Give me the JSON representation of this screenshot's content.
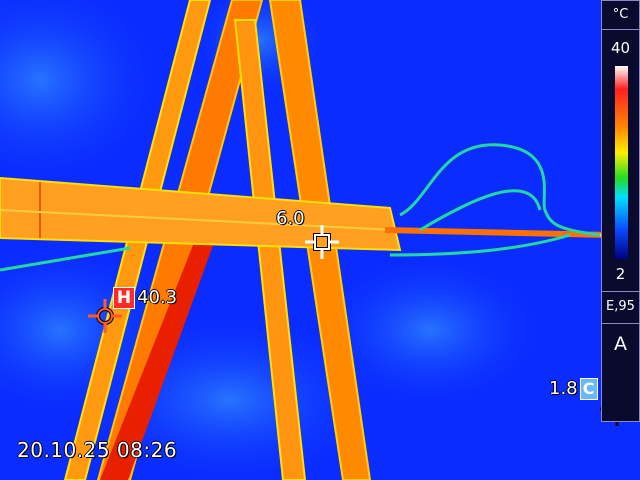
{
  "colors": {
    "sky": "#0a2cff",
    "hot": "#ff2a2a",
    "cold": "#6ab6ff",
    "panel": "#0a0a2e"
  },
  "measurements": {
    "center_spot": {
      "value": "6.0",
      "icon": "crosshair-icon"
    },
    "hot_spot": {
      "badge": "H",
      "value": "40.3",
      "icon": "crosshair-icon"
    },
    "cold_spot": {
      "badge": "C",
      "value": "1.8",
      "icon": "crosshair-icon"
    }
  },
  "timestamp": "20.10.25 08:26",
  "scale": {
    "unit": "°C",
    "max": "40",
    "min": "2",
    "emissivity": "E,95",
    "mode": "A",
    "palette": [
      "#ffffff",
      "#ff2020",
      "#ff8800",
      "#ffee00",
      "#22dd22",
      "#00e0ff",
      "#0a48ff",
      "#000080"
    ]
  }
}
